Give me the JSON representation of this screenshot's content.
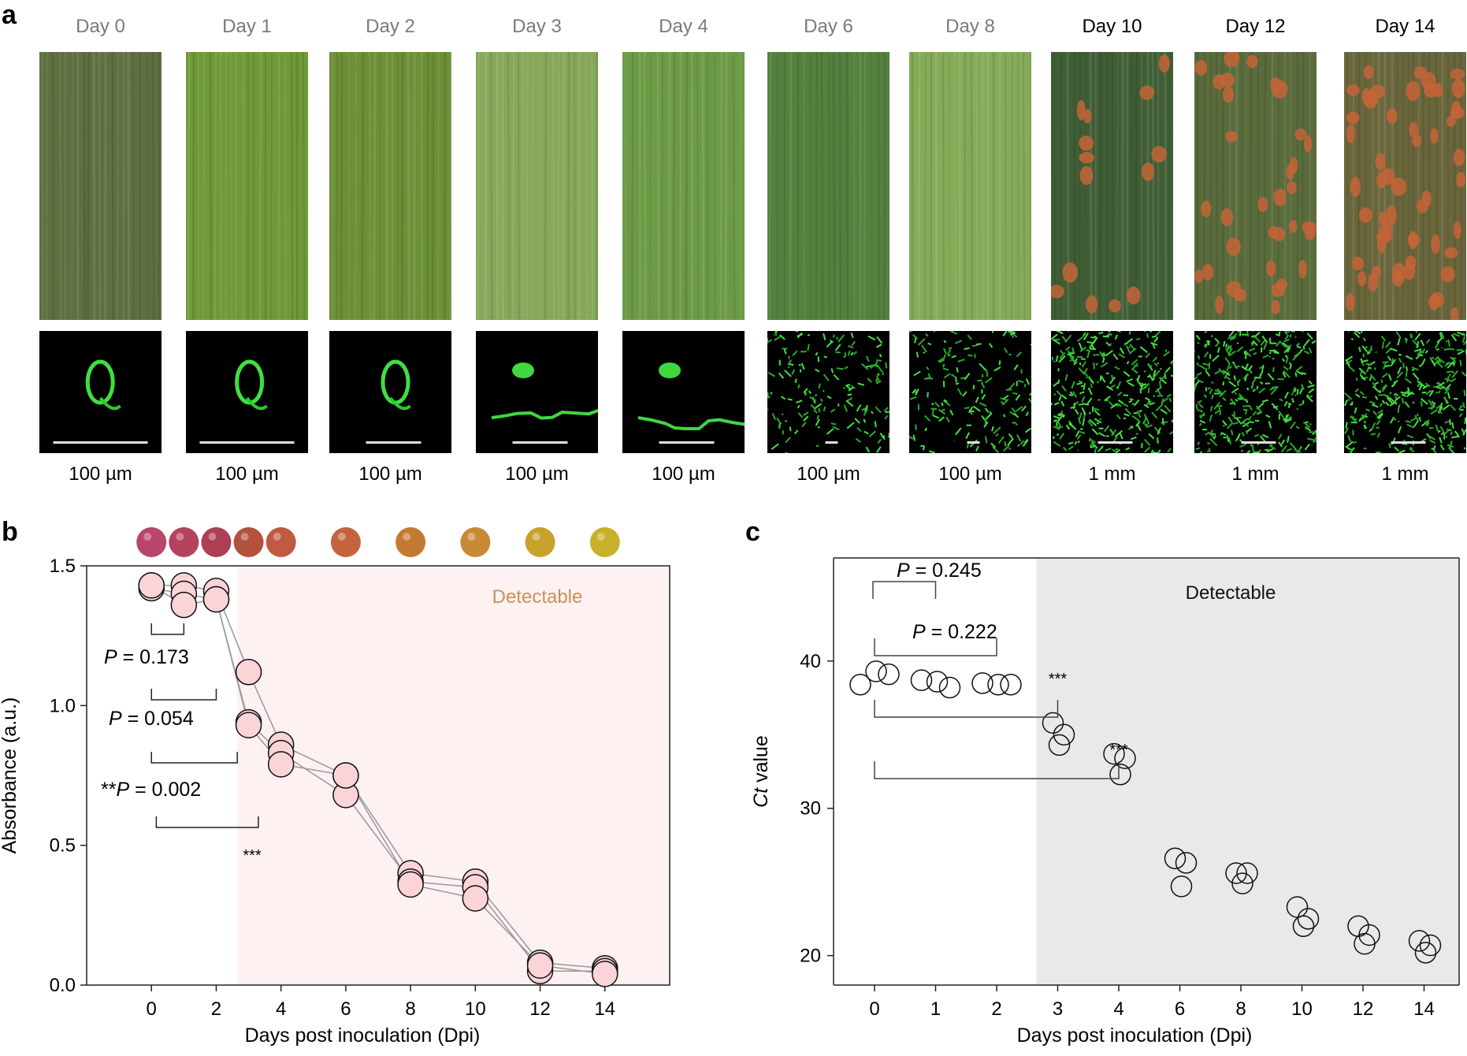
{
  "panel_a": {
    "letter": "a",
    "columns": [
      {
        "day": "Day 0",
        "label_color": "gray",
        "scale": "100 µm",
        "leaf_color": "#5e7040",
        "lesions": 0,
        "growth": "small"
      },
      {
        "day": "Day 1",
        "label_color": "gray",
        "scale": "100 µm",
        "leaf_color": "#6f9a38",
        "lesions": 0,
        "growth": "small"
      },
      {
        "day": "Day 2",
        "label_color": "gray",
        "scale": "100 µm",
        "leaf_color": "#6c9038",
        "lesions": 0,
        "growth": "small"
      },
      {
        "day": "Day 3",
        "label_color": "gray",
        "scale": "100 µm",
        "leaf_color": "#86a85a",
        "lesions": 0,
        "growth": "medium"
      },
      {
        "day": "Day 4",
        "label_color": "gray",
        "scale": "100 µm",
        "leaf_color": "#6d9a45",
        "lesions": 0,
        "growth": "medium"
      },
      {
        "day": "Day 6",
        "label_color": "gray",
        "scale": "100 µm",
        "leaf_color": "#55803f",
        "lesions": 0,
        "growth": "large"
      },
      {
        "day": "Day 8",
        "label_color": "gray",
        "scale": "100 µm",
        "leaf_color": "#86ab58",
        "lesions": 0,
        "growth": "large"
      },
      {
        "day": "Day 10",
        "label_color": "black",
        "scale": "1 mm",
        "leaf_color": "#405e35",
        "lesions": 14,
        "growth": "dense"
      },
      {
        "day": "Day 12",
        "label_color": "black",
        "scale": "1 mm",
        "leaf_color": "#5a6c3c",
        "lesions": 34,
        "growth": "dense"
      },
      {
        "day": "Day 14",
        "label_color": "black",
        "scale": "1 mm",
        "leaf_color": "#6a663c",
        "lesions": 55,
        "growth": "dense"
      }
    ]
  },
  "panel_b": {
    "letter": "b",
    "bead_colors": [
      "#b8466a",
      "#b4435e",
      "#ac3f52",
      "#b4503e",
      "#c05a40",
      "#c4643c",
      "#c37a30",
      "#c98a35",
      "#c9a22c",
      "#c8b02a"
    ],
    "bead_days": [
      0,
      1,
      2,
      3,
      4,
      6,
      8,
      10,
      12,
      14
    ],
    "detectable_label": "Detectable",
    "detectable_from_day": 2.65,
    "p_labels": [
      {
        "prefix": "",
        "italic": "P",
        "text": " = 0.173"
      },
      {
        "prefix": "",
        "italic": "P",
        "text": " = 0.054"
      },
      {
        "prefix": "**",
        "italic": "P",
        "text": " = 0.002"
      }
    ],
    "stars": "***"
  },
  "panel_c": {
    "letter": "c",
    "detectable_label": "Detectable",
    "detectable_from_pos": 2.65,
    "p_labels": [
      {
        "italic": "P",
        "text": " = 0.245"
      },
      {
        "italic": "P",
        "text": " = 0.222"
      }
    ],
    "stars": [
      "***",
      "***"
    ]
  },
  "chart_data": [
    {
      "type": "line+scatter",
      "xlabel": "Days post inoculation (Dpi)",
      "ylabel": "Absorbance (a.u.)",
      "xlim": [
        -2,
        16
      ],
      "ylim": [
        0,
        1.5
      ],
      "xticks": [
        0,
        2,
        4,
        6,
        8,
        10,
        12,
        14
      ],
      "xtick_labels": [
        "0",
        "2",
        "4",
        "6",
        "8",
        "10",
        "12",
        "14"
      ],
      "yticks": [
        0.0,
        0.5,
        1.0,
        1.5
      ],
      "ytick_labels": [
        "0.0",
        "0.5",
        "1.0",
        "1.5"
      ],
      "x": [
        0,
        1,
        2,
        3,
        4,
        6,
        8,
        10,
        12,
        14
      ],
      "series": [
        {
          "values": [
            1.43,
            1.43,
            1.41,
            1.12,
            0.86,
            0.75,
            0.4,
            0.37,
            0.08,
            0.06
          ]
        },
        {
          "values": [
            1.42,
            1.4,
            1.38,
            0.94,
            0.83,
            0.68,
            0.37,
            0.35,
            0.05,
            0.05
          ]
        },
        {
          "values": [
            1.43,
            1.36,
            1.38,
            0.93,
            0.79,
            0.75,
            0.36,
            0.31,
            0.07,
            0.04
          ]
        }
      ]
    },
    {
      "type": "scatter",
      "xlabel": "Days post inoculation (Dpi)",
      "ylabel": "Ct value",
      "ylim": [
        18,
        47
      ],
      "xtick_labels": [
        "0",
        "1",
        "2",
        "3",
        "4",
        "6",
        "8",
        "10",
        "12",
        "14"
      ],
      "yticks": [
        20,
        30,
        40
      ],
      "ytick_labels": [
        "20",
        "30",
        "40"
      ],
      "points": [
        {
          "x": "0",
          "values": [
            38.4,
            39.3,
            39.1
          ]
        },
        {
          "x": "1",
          "values": [
            38.7,
            38.6,
            38.2
          ]
        },
        {
          "x": "2",
          "values": [
            38.5,
            38.4,
            38.4
          ]
        },
        {
          "x": "3",
          "values": [
            35.8,
            35.0,
            34.3
          ]
        },
        {
          "x": "4",
          "values": [
            33.7,
            33.4,
            32.3
          ]
        },
        {
          "x": "6",
          "values": [
            26.6,
            26.3,
            24.7
          ]
        },
        {
          "x": "8",
          "values": [
            25.6,
            25.6,
            24.9
          ]
        },
        {
          "x": "10",
          "values": [
            23.3,
            22.5,
            22.0
          ]
        },
        {
          "x": "12",
          "values": [
            22.0,
            21.4,
            20.8
          ]
        },
        {
          "x": "14",
          "values": [
            21.0,
            20.7,
            20.2
          ]
        }
      ]
    }
  ]
}
